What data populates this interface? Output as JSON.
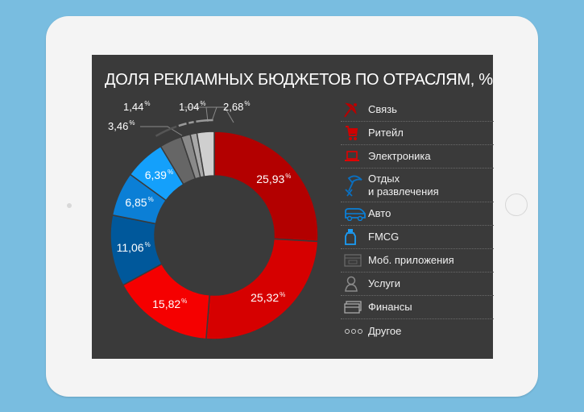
{
  "title": "ДОЛЯ РЕКЛАМНЫХ БЮДЖЕТОВ ПО ОТРАСЛЯМ, %",
  "percent_sign": "%",
  "chart_data": {
    "type": "pie",
    "subtype": "donut",
    "title": "ДОЛЯ РЕКЛАМНЫХ БЮДЖЕТОВ ПО ОТРАСЛЯМ, %",
    "direction": "clockwise from top",
    "categories": [
      "Связь",
      "Ритейл",
      "Электроника",
      "Отдых и развлечения",
      "Авто",
      "FMCG",
      "Моб. приложения",
      "Услуги",
      "Финансы",
      "Другое"
    ],
    "values": [
      25.93,
      25.32,
      15.82,
      11.06,
      6.85,
      6.39,
      3.46,
      1.44,
      1.04,
      2.68
    ],
    "labels": [
      "25,93",
      "25,32",
      "15,82",
      "11,06",
      "6,85",
      "6,39",
      "3,46",
      "1,44",
      "1,04",
      "2,68"
    ],
    "colors": [
      "#b30000",
      "#d60000",
      "#f50000",
      "#00589b",
      "#0b7fd6",
      "#14a0fb",
      "#666666",
      "#8a8a8a",
      "#a9a9a9",
      "#cfcfcf"
    ],
    "legend_position": "right"
  },
  "legend": [
    {
      "label": "Связь",
      "icon": "satellite-dish-icon",
      "color": "#b80000"
    },
    {
      "label": "Ритейл",
      "icon": "shopping-cart-icon",
      "color": "#d00000"
    },
    {
      "label": "Электроника",
      "icon": "laptop-icon",
      "color": "#e00000"
    },
    {
      "label": "Отдых",
      "label2": "и развлечения",
      "icon": "beach-umbrella-icon",
      "color": "#0a6fc0"
    },
    {
      "label": "Авто",
      "icon": "car-icon",
      "color": "#0b7fd6"
    },
    {
      "label": "FMCG",
      "icon": "bottle-icon",
      "color": "#1a9cf5"
    },
    {
      "label": "Моб. приложения",
      "icon": "app-store-icon",
      "color": "#6a6a6a"
    },
    {
      "label": "Услуги",
      "icon": "person-icon",
      "color": "#8a8a8a"
    },
    {
      "label": "Финансы",
      "icon": "credit-card-icon",
      "color": "#a9a9a9"
    },
    {
      "label": "Другое",
      "icon": "more-dots-icon",
      "color": "#cfcfcf"
    }
  ]
}
